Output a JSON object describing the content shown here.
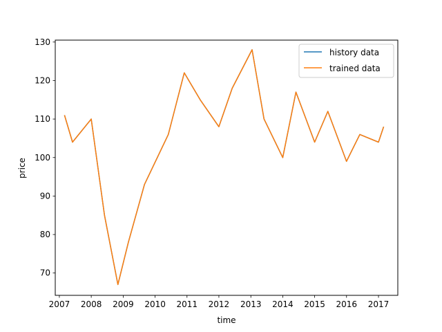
{
  "chart_data": {
    "type": "line",
    "title": "",
    "xlabel": "time",
    "ylabel": "price",
    "xlim": [
      "2006-11-15",
      "2017-08-10"
    ],
    "ylim": [
      64.2,
      130.5
    ],
    "x_ticks": [
      "2007",
      "2008",
      "2009",
      "2010",
      "2011",
      "2012",
      "2013",
      "2014",
      "2015",
      "2016",
      "2017"
    ],
    "y_ticks": [
      70,
      80,
      90,
      100,
      110,
      120,
      130
    ],
    "grid": false,
    "legend": {
      "placement": "top-right",
      "entries": [
        "history data",
        "trained data"
      ]
    },
    "series": [
      {
        "name": "history data",
        "color": "#1f77b4",
        "x": [
          "2007-03-01",
          "2007-06-01",
          "2008-01-01",
          "2008-06-01",
          "2008-11-01",
          "2009-03-01",
          "2009-09-01",
          "2010-06-01",
          "2010-12-01",
          "2011-06-01",
          "2012-01-01",
          "2012-06-01",
          "2013-01-15",
          "2013-06-01",
          "2014-01-01",
          "2014-06-01",
          "2015-01-01",
          "2015-06-01",
          "2016-01-01",
          "2016-06-01",
          "2017-01-01",
          "2017-03-01"
        ],
        "y": [
          111,
          104,
          110,
          85,
          67,
          78,
          93,
          106,
          122,
          115,
          108,
          118,
          128,
          110,
          100,
          117,
          104,
          112,
          99,
          106,
          104,
          108
        ]
      },
      {
        "name": "trained data",
        "color": "#ff7f0e",
        "x": [
          "2007-03-01",
          "2007-06-01",
          "2008-01-01",
          "2008-06-01",
          "2008-11-01",
          "2009-03-01",
          "2009-09-01",
          "2010-06-01",
          "2010-12-01",
          "2011-06-01",
          "2012-01-01",
          "2012-06-01",
          "2013-01-15",
          "2013-06-01",
          "2014-01-01",
          "2014-06-01",
          "2015-01-01",
          "2015-06-01",
          "2016-01-01",
          "2016-06-01",
          "2017-01-01",
          "2017-03-01"
        ],
        "y": [
          111,
          104,
          110,
          85,
          67,
          78,
          93,
          106,
          122,
          115,
          108,
          118,
          128,
          110,
          100,
          117,
          104,
          112,
          99,
          106,
          104,
          108
        ]
      }
    ]
  }
}
